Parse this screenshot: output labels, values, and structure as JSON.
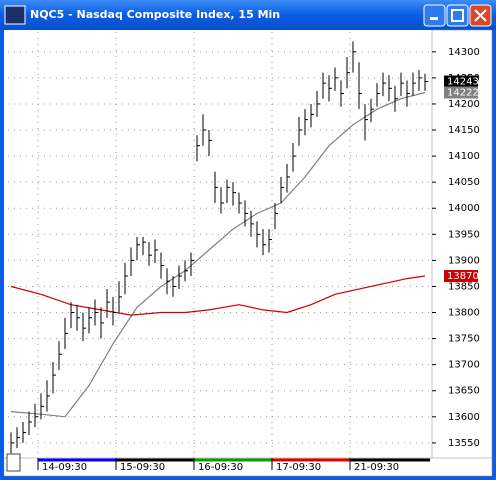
{
  "chart_data": {
    "type": "ohlc",
    "title": "NQC5 - Nasdaq Composite Index, 15 Min",
    "color": "#000000",
    "x": [
      0,
      1,
      2,
      3,
      4,
      5,
      6,
      7,
      8,
      9,
      10,
      11,
      12,
      13,
      14,
      15,
      16,
      17,
      18,
      19,
      20,
      21,
      22,
      23,
      24,
      25,
      26,
      27,
      28,
      29,
      30,
      31,
      32,
      33,
      34,
      35,
      36,
      37,
      38,
      39,
      40,
      41,
      42,
      43,
      44,
      45,
      46,
      47,
      48,
      49,
      50,
      51,
      52,
      53,
      54,
      55,
      56,
      57,
      58,
      59,
      60,
      61,
      62,
      63,
      64,
      65,
      66,
      67,
      68,
      69
    ],
    "close": [
      13550,
      13560,
      13570,
      13590,
      13600,
      13620,
      13640,
      13680,
      13720,
      13760,
      13800,
      13790,
      13770,
      13790,
      13800,
      13780,
      13820,
      13800,
      13830,
      13870,
      13900,
      13930,
      13935,
      13910,
      13920,
      13890,
      13860,
      13850,
      13870,
      13880,
      13900,
      14120,
      14150,
      14130,
      14040,
      14010,
      14040,
      14030,
      14010,
      13990,
      13970,
      13950,
      13930,
      13940,
      13990,
      14040,
      14060,
      14100,
      14150,
      14170,
      14180,
      14200,
      14240,
      14230,
      14250,
      14220,
      14260,
      14300,
      14220,
      14170,
      14190,
      14220,
      14240,
      14230,
      14210,
      14240,
      14220,
      14240,
      14250,
      14243
    ],
    "high": [
      13570,
      13580,
      13590,
      13610,
      13625,
      13645,
      13670,
      13705,
      13745,
      13790,
      13820,
      13815,
      13800,
      13810,
      13825,
      13810,
      13845,
      13830,
      13860,
      13895,
      13925,
      13945,
      13945,
      13935,
      13940,
      13915,
      13885,
      13870,
      13890,
      13900,
      13915,
      14140,
      14180,
      14150,
      14070,
      14040,
      14055,
      14050,
      14030,
      14015,
      13995,
      13975,
      13960,
      13960,
      14010,
      14060,
      14085,
      14125,
      14175,
      14190,
      14200,
      14225,
      14260,
      14255,
      14270,
      14245,
      14290,
      14320,
      14280,
      14200,
      14210,
      14240,
      14260,
      14255,
      14235,
      14260,
      14245,
      14260,
      14265,
      14258
    ],
    "low": [
      13530,
      13540,
      13550,
      13565,
      13580,
      13595,
      13610,
      13645,
      13690,
      13730,
      13770,
      13765,
      13745,
      13760,
      13775,
      13750,
      13790,
      13775,
      13800,
      13835,
      13870,
      13900,
      13910,
      13890,
      13895,
      13865,
      13835,
      13830,
      13845,
      13860,
      13870,
      14090,
      14120,
      14100,
      14010,
      13990,
      14010,
      14005,
      13990,
      13965,
      13945,
      13925,
      13910,
      13915,
      13960,
      14010,
      14030,
      14070,
      14120,
      14140,
      14155,
      14175,
      14210,
      14205,
      14225,
      14195,
      14230,
      14260,
      14190,
      14130,
      14165,
      14195,
      14215,
      14205,
      14185,
      14215,
      14195,
      14215,
      14225,
      14225
    ],
    "lines": [
      {
        "color": "#808080",
        "x": [
          0,
          5,
          9,
          13,
          17,
          21,
          25,
          29,
          33,
          37,
          41,
          45,
          49,
          53,
          57,
          61,
          65,
          69
        ],
        "values": [
          13610,
          13605,
          13600,
          13660,
          13740,
          13810,
          13850,
          13880,
          13920,
          13960,
          13990,
          14010,
          14060,
          14120,
          14160,
          14190,
          14210,
          14222
        ]
      },
      {
        "color": "#cc0000",
        "x": [
          0,
          5,
          10,
          15,
          20,
          25,
          29,
          33,
          38,
          42,
          46,
          50,
          54,
          58,
          62,
          66,
          69
        ],
        "values": [
          13850,
          13835,
          13815,
          13805,
          13795,
          13800,
          13800,
          13805,
          13815,
          13805,
          13800,
          13815,
          13835,
          13845,
          13855,
          13865,
          13870
        ]
      }
    ],
    "xlim": [
      -0.5,
      69.5
    ],
    "xticks": [
      {
        "value": 4.5,
        "label": "14-09:30"
      },
      {
        "value": 17.5,
        "label": "15-09:30"
      },
      {
        "value": 30.5,
        "label": "16-09:30"
      },
      {
        "value": 43.5,
        "label": "17-09:30"
      },
      {
        "value": 56.5,
        "label": "21-09:30"
      }
    ],
    "ylim": [
      13521,
      14338
    ],
    "yticks": [
      13550,
      13600,
      13650,
      13700,
      13750,
      13800,
      13850,
      13900,
      13950,
      14000,
      14050,
      14100,
      14150,
      14200,
      14250,
      14300
    ],
    "grid": true
  }
}
